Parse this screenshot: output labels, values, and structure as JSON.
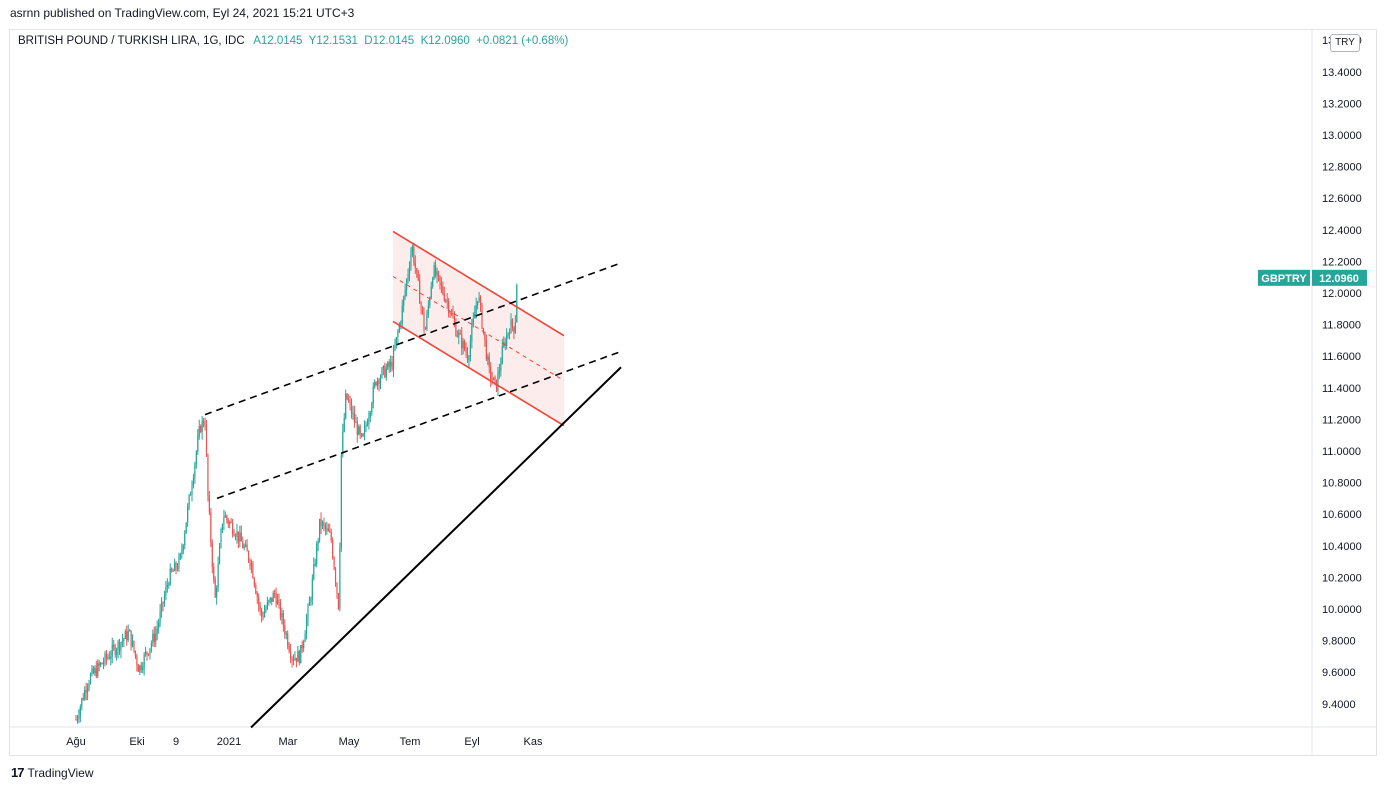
{
  "publisher_line": "asrnn published on TradingView.com, Eyl 24, 2021 15:21 UTC+3",
  "legend": {
    "symbol": "BRITISH POUND / TURKISH LIRA, 1G, IDC",
    "open_label": "A",
    "open": "12.0145",
    "high_label": "Y",
    "high": "12.1531",
    "low_label": "D",
    "low": "12.0145",
    "close_label": "K",
    "close": "12.0960",
    "change": "+0.0821 (+0.68%)"
  },
  "currency_badge": "TRY",
  "price_label": {
    "ticker": "GBPTRY",
    "value": "12.0960"
  },
  "branding": "TradingView",
  "colors": {
    "up": "#26a69a",
    "down": "#ef5350",
    "channel": "#f44336",
    "channel_fill": "#fde7e7",
    "trend": "#000000",
    "badge_bg": "#26a69a"
  },
  "chart_data": {
    "type": "candlestick",
    "title": "BRITISH POUND / TURKISH LIRA, 1G, IDC",
    "y_axis": {
      "position": "right",
      "ylim": [
        9.25,
        13.6
      ],
      "ticks": [
        "13.4000",
        "13.2000",
        "13.0000",
        "12.8000",
        "12.6000",
        "12.4000",
        "12.2000",
        "12.0000",
        "11.8000",
        "11.6000",
        "11.4000",
        "11.2000",
        "11.0000",
        "10.8000",
        "10.6000",
        "10.4000",
        "10.2000",
        "10.0000",
        "9.8000",
        "9.6000",
        "9.4000"
      ]
    },
    "x_axis": {
      "ticks": [
        "Ağu",
        "Eki",
        "9",
        "2021",
        "Mar",
        "May",
        "Tem",
        "Eyl",
        "Kas"
      ]
    },
    "grid": false,
    "price_path": [
      {
        "date": "2020-07-24",
        "close": 9.3
      },
      {
        "date": "2020-08-05",
        "close": 9.55
      },
      {
        "date": "2020-08-25",
        "close": 9.7
      },
      {
        "date": "2020-09-15",
        "close": 9.85
      },
      {
        "date": "2020-09-25",
        "close": 9.62
      },
      {
        "date": "2020-10-12",
        "close": 9.85
      },
      {
        "date": "2020-10-25",
        "close": 10.2
      },
      {
        "date": "2020-11-05",
        "close": 10.3
      },
      {
        "date": "2020-11-25",
        "close": 11.15
      },
      {
        "date": "2020-11-30",
        "close": 11.2
      },
      {
        "date": "2020-12-03",
        "close": 10.7
      },
      {
        "date": "2020-12-10",
        "close": 10.05
      },
      {
        "date": "2020-12-18",
        "close": 10.6
      },
      {
        "date": "2020-12-30",
        "close": 10.5
      },
      {
        "date": "2021-01-15",
        "close": 10.3
      },
      {
        "date": "2021-01-25",
        "close": 9.95
      },
      {
        "date": "2021-02-08",
        "close": 10.1
      },
      {
        "date": "2021-02-25",
        "close": 9.7
      },
      {
        "date": "2021-03-05",
        "close": 9.7
      },
      {
        "date": "2021-03-15",
        "close": 10.05
      },
      {
        "date": "2021-03-25",
        "close": 10.55
      },
      {
        "date": "2021-04-05",
        "close": 10.45
      },
      {
        "date": "2021-04-13",
        "close": 10.0
      },
      {
        "date": "2021-04-15",
        "close": 10.95
      },
      {
        "date": "2021-04-20",
        "close": 11.35
      },
      {
        "date": "2021-05-06",
        "close": 11.05
      },
      {
        "date": "2021-05-20",
        "close": 11.45
      },
      {
        "date": "2021-06-05",
        "close": 11.55
      },
      {
        "date": "2021-06-14",
        "close": 11.85
      },
      {
        "date": "2021-06-25",
        "close": 12.3
      },
      {
        "date": "2021-07-08",
        "close": 11.75
      },
      {
        "date": "2021-07-16",
        "close": 12.15
      },
      {
        "date": "2021-07-30",
        "close": 11.95
      },
      {
        "date": "2021-08-09",
        "close": 11.75
      },
      {
        "date": "2021-08-20",
        "close": 11.6
      },
      {
        "date": "2021-08-30",
        "close": 12.0
      },
      {
        "date": "2021-09-10",
        "close": 11.5
      },
      {
        "date": "2021-09-17",
        "close": 11.4
      },
      {
        "date": "2021-09-24",
        "close": 11.65
      },
      {
        "date": "2021-10-01",
        "close": 11.8
      },
      {
        "date": "2021-10-06",
        "close": 11.78
      },
      {
        "date": "2021-10-08",
        "close": 12.1
      }
    ],
    "drawings": {
      "upper_dashed": [
        {
          "date": "2020-11-30",
          "price": 11.23
        },
        {
          "date": "2022-01-20",
          "price": 12.19
        }
      ],
      "middle_dashed": [
        {
          "date": "2020-12-12",
          "price": 10.7
        },
        {
          "date": "2022-01-20",
          "price": 11.63
        }
      ],
      "solid_trend": [
        {
          "date": "2021-01-15",
          "price": 9.25
        },
        {
          "date": "2022-01-20",
          "price": 11.53
        }
      ],
      "descending_channel": {
        "upper": [
          {
            "date": "2021-06-06",
            "price": 12.39
          },
          {
            "date": "2021-11-24",
            "price": 11.73
          }
        ],
        "lower": [
          {
            "date": "2021-06-06",
            "price": 11.82
          },
          {
            "date": "2021-11-24",
            "price": 11.16
          }
        ]
      }
    },
    "last_price": 12.096
  }
}
